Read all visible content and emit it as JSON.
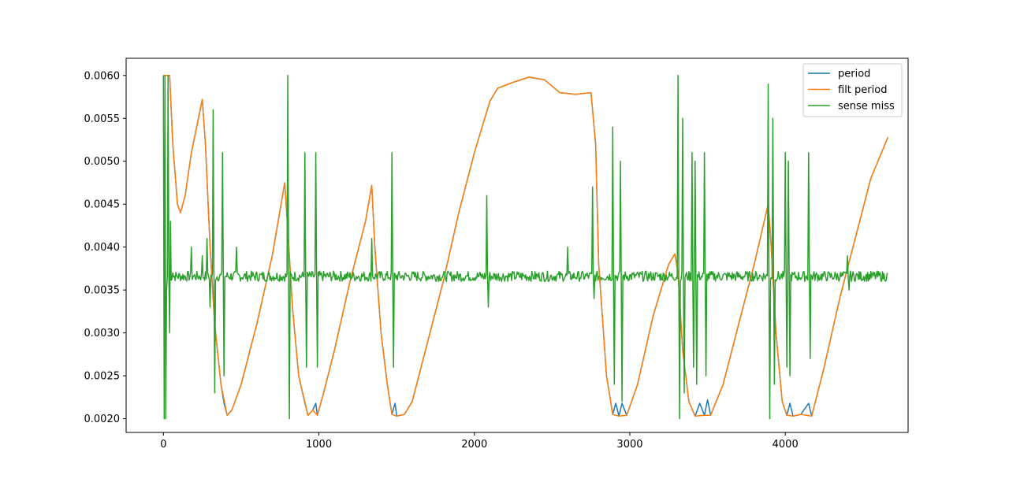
{
  "chart_data": {
    "type": "line",
    "title": "",
    "xlabel": "",
    "ylabel": "",
    "xlim": [
      -240,
      4790
    ],
    "ylim": [
      0.00184,
      0.0062
    ],
    "xticks": [
      {
        "value": 0,
        "label": "0"
      },
      {
        "value": 1000,
        "label": "1000"
      },
      {
        "value": 2000,
        "label": "2000"
      },
      {
        "value": 3000,
        "label": "3000"
      },
      {
        "value": 4000,
        "label": "4000"
      }
    ],
    "yticks": [
      {
        "value": 0.002,
        "label": "0.0020"
      },
      {
        "value": 0.0025,
        "label": "0.0025"
      },
      {
        "value": 0.003,
        "label": "0.0030"
      },
      {
        "value": 0.0035,
        "label": "0.0035"
      },
      {
        "value": 0.004,
        "label": "0.0040"
      },
      {
        "value": 0.0045,
        "label": "0.0045"
      },
      {
        "value": 0.005,
        "label": "0.0050"
      },
      {
        "value": 0.0055,
        "label": "0.0055"
      },
      {
        "value": 0.006,
        "label": "0.0060"
      }
    ],
    "grid": false,
    "legend": "top-right",
    "series": [
      {
        "name": "period",
        "color": "#1f77b4",
        "points": [
          [
            0,
            0.006
          ],
          [
            40,
            0.006
          ],
          [
            60,
            0.0052
          ],
          [
            90,
            0.0045
          ],
          [
            110,
            0.0044
          ],
          [
            140,
            0.0046
          ],
          [
            180,
            0.0051
          ],
          [
            250,
            0.00572
          ],
          [
            270,
            0.0052
          ],
          [
            300,
            0.004
          ],
          [
            330,
            0.0031
          ],
          [
            370,
            0.0024
          ],
          [
            390,
            0.00218
          ],
          [
            410,
            0.00204
          ],
          [
            440,
            0.0021
          ],
          [
            500,
            0.0024
          ],
          [
            600,
            0.0031
          ],
          [
            700,
            0.0039
          ],
          [
            780,
            0.00475
          ],
          [
            800,
            0.0042
          ],
          [
            830,
            0.0033
          ],
          [
            870,
            0.0025
          ],
          [
            910,
            0.00218
          ],
          [
            930,
            0.00204
          ],
          [
            960,
            0.0021
          ],
          [
            980,
            0.00218
          ],
          [
            990,
            0.00204
          ],
          [
            1030,
            0.0023
          ],
          [
            1100,
            0.0028
          ],
          [
            1200,
            0.0036
          ],
          [
            1300,
            0.0043
          ],
          [
            1340,
            0.00472
          ],
          [
            1360,
            0.004
          ],
          [
            1400,
            0.003
          ],
          [
            1440,
            0.0024
          ],
          [
            1470,
            0.00205
          ],
          [
            1490,
            0.00218
          ],
          [
            1500,
            0.00203
          ],
          [
            1550,
            0.00205
          ],
          [
            1600,
            0.0022
          ],
          [
            1700,
            0.0029
          ],
          [
            1800,
            0.0036
          ],
          [
            1900,
            0.0044
          ],
          [
            2000,
            0.0051
          ],
          [
            2050,
            0.0054
          ],
          [
            2100,
            0.0057
          ],
          [
            2150,
            0.00585
          ],
          [
            2250,
            0.00592
          ],
          [
            2350,
            0.00598
          ],
          [
            2450,
            0.00595
          ],
          [
            2550,
            0.0058
          ],
          [
            2650,
            0.00578
          ],
          [
            2750,
            0.0058
          ],
          [
            2780,
            0.0052
          ],
          [
            2800,
            0.0038
          ],
          [
            2850,
            0.0025
          ],
          [
            2890,
            0.00205
          ],
          [
            2910,
            0.00218
          ],
          [
            2930,
            0.00203
          ],
          [
            2950,
            0.00218
          ],
          [
            2980,
            0.00204
          ],
          [
            3050,
            0.0024
          ],
          [
            3150,
            0.0032
          ],
          [
            3250,
            0.0038
          ],
          [
            3290,
            0.00392
          ],
          [
            3310,
            0.0037
          ],
          [
            3340,
            0.0028
          ],
          [
            3380,
            0.0022
          ],
          [
            3420,
            0.00203
          ],
          [
            3450,
            0.00218
          ],
          [
            3480,
            0.00204
          ],
          [
            3500,
            0.00222
          ],
          [
            3520,
            0.00204
          ],
          [
            3600,
            0.0024
          ],
          [
            3700,
            0.0031
          ],
          [
            3800,
            0.0038
          ],
          [
            3890,
            0.0045
          ],
          [
            3910,
            0.004
          ],
          [
            3940,
            0.003
          ],
          [
            3980,
            0.0022
          ],
          [
            4010,
            0.00204
          ],
          [
            4030,
            0.00218
          ],
          [
            4050,
            0.00203
          ],
          [
            4100,
            0.00205
          ],
          [
            4150,
            0.00218
          ],
          [
            4170,
            0.00203
          ],
          [
            4250,
            0.0026
          ],
          [
            4350,
            0.0034
          ],
          [
            4450,
            0.0041
          ],
          [
            4550,
            0.0048
          ],
          [
            4660,
            0.00528
          ]
        ]
      },
      {
        "name": "filt period",
        "color": "#ff7f0e",
        "points": [
          [
            0,
            0.006
          ],
          [
            40,
            0.006
          ],
          [
            60,
            0.0052
          ],
          [
            90,
            0.0045
          ],
          [
            110,
            0.0044
          ],
          [
            140,
            0.0046
          ],
          [
            180,
            0.0051
          ],
          [
            250,
            0.00572
          ],
          [
            270,
            0.0052
          ],
          [
            300,
            0.004
          ],
          [
            330,
            0.0031
          ],
          [
            370,
            0.0024
          ],
          [
            410,
            0.00204
          ],
          [
            440,
            0.0021
          ],
          [
            500,
            0.0024
          ],
          [
            600,
            0.0031
          ],
          [
            700,
            0.0039
          ],
          [
            780,
            0.00475
          ],
          [
            800,
            0.0042
          ],
          [
            830,
            0.0033
          ],
          [
            870,
            0.0025
          ],
          [
            930,
            0.00204
          ],
          [
            960,
            0.0021
          ],
          [
            990,
            0.00204
          ],
          [
            1030,
            0.0023
          ],
          [
            1100,
            0.0028
          ],
          [
            1200,
            0.0036
          ],
          [
            1300,
            0.0043
          ],
          [
            1340,
            0.00472
          ],
          [
            1360,
            0.004
          ],
          [
            1400,
            0.003
          ],
          [
            1440,
            0.0024
          ],
          [
            1470,
            0.00205
          ],
          [
            1500,
            0.00203
          ],
          [
            1550,
            0.00205
          ],
          [
            1600,
            0.0022
          ],
          [
            1700,
            0.0029
          ],
          [
            1800,
            0.0036
          ],
          [
            1900,
            0.0044
          ],
          [
            2000,
            0.0051
          ],
          [
            2050,
            0.0054
          ],
          [
            2100,
            0.0057
          ],
          [
            2150,
            0.00585
          ],
          [
            2250,
            0.00592
          ],
          [
            2350,
            0.00598
          ],
          [
            2450,
            0.00595
          ],
          [
            2550,
            0.0058
          ],
          [
            2650,
            0.00578
          ],
          [
            2750,
            0.0058
          ],
          [
            2780,
            0.0052
          ],
          [
            2800,
            0.0038
          ],
          [
            2850,
            0.0025
          ],
          [
            2890,
            0.00205
          ],
          [
            2930,
            0.00203
          ],
          [
            2980,
            0.00204
          ],
          [
            3050,
            0.0024
          ],
          [
            3150,
            0.0032
          ],
          [
            3250,
            0.0038
          ],
          [
            3290,
            0.00392
          ],
          [
            3310,
            0.0037
          ],
          [
            3340,
            0.0028
          ],
          [
            3380,
            0.0022
          ],
          [
            3420,
            0.00203
          ],
          [
            3480,
            0.00204
          ],
          [
            3520,
            0.00204
          ],
          [
            3600,
            0.0024
          ],
          [
            3700,
            0.0031
          ],
          [
            3800,
            0.0038
          ],
          [
            3890,
            0.0045
          ],
          [
            3910,
            0.004
          ],
          [
            3940,
            0.003
          ],
          [
            3980,
            0.0022
          ],
          [
            4010,
            0.00204
          ],
          [
            4050,
            0.00203
          ],
          [
            4100,
            0.00205
          ],
          [
            4170,
            0.00203
          ],
          [
            4250,
            0.0026
          ],
          [
            4350,
            0.0034
          ],
          [
            4450,
            0.0041
          ],
          [
            4550,
            0.0048
          ],
          [
            4660,
            0.00528
          ]
        ]
      },
      {
        "name": "sense miss",
        "color": "#2ca02c",
        "x_range": [
          0,
          4660
        ],
        "baseline": 0.00366,
        "noise": 6e-05,
        "spikes": [
          [
            0,
            0.006
          ],
          [
            5,
            0.002
          ],
          [
            10,
            0.006
          ],
          [
            15,
            0.002
          ],
          [
            20,
            0.0035
          ],
          [
            30,
            0.006
          ],
          [
            40,
            0.003
          ],
          [
            45,
            0.0043
          ],
          [
            60,
            0.0037
          ],
          [
            180,
            0.004
          ],
          [
            250,
            0.0039
          ],
          [
            280,
            0.0041
          ],
          [
            300,
            0.0033
          ],
          [
            320,
            0.0056
          ],
          [
            330,
            0.0023
          ],
          [
            380,
            0.0051
          ],
          [
            390,
            0.0025
          ],
          [
            470,
            0.004
          ],
          [
            800,
            0.006
          ],
          [
            810,
            0.002
          ],
          [
            910,
            0.0051
          ],
          [
            920,
            0.0026
          ],
          [
            980,
            0.0051
          ],
          [
            990,
            0.0026
          ],
          [
            1340,
            0.0041
          ],
          [
            1470,
            0.0051
          ],
          [
            1480,
            0.0026
          ],
          [
            2080,
            0.0046
          ],
          [
            2090,
            0.0033
          ],
          [
            2600,
            0.004
          ],
          [
            2760,
            0.0047
          ],
          [
            2770,
            0.0034
          ],
          [
            2890,
            0.0054
          ],
          [
            2900,
            0.0024
          ],
          [
            2940,
            0.005
          ],
          [
            2950,
            0.0022
          ],
          [
            3310,
            0.006
          ],
          [
            3320,
            0.002
          ],
          [
            3340,
            0.0055
          ],
          [
            3350,
            0.0023
          ],
          [
            3400,
            0.0051
          ],
          [
            3410,
            0.0026
          ],
          [
            3420,
            0.005
          ],
          [
            3430,
            0.0024
          ],
          [
            3480,
            0.0051
          ],
          [
            3490,
            0.0025
          ],
          [
            3890,
            0.0059
          ],
          [
            3900,
            0.002
          ],
          [
            3920,
            0.0055
          ],
          [
            3930,
            0.0024
          ],
          [
            4000,
            0.0051
          ],
          [
            4010,
            0.0026
          ],
          [
            4020,
            0.005
          ],
          [
            4030,
            0.0025
          ],
          [
            4150,
            0.0051
          ],
          [
            4160,
            0.0027
          ],
          [
            4400,
            0.0039
          ],
          [
            4410,
            0.0035
          ]
        ]
      }
    ]
  }
}
